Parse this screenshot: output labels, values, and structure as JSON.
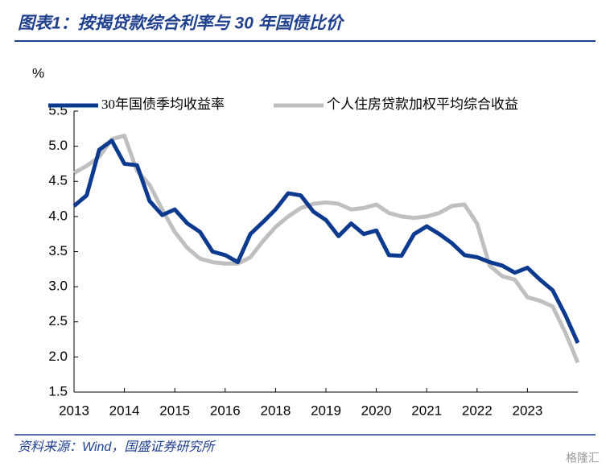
{
  "chart_data": {
    "type": "line",
    "title": "图表1：按揭贷款综合利率与 30 年国债比价",
    "source": "资料来源：Wind，国盛证券研究所",
    "watermark": "格隆汇",
    "y_label": "%",
    "x": [
      0,
      1,
      2,
      3,
      4,
      5,
      6,
      7,
      8,
      9,
      10,
      11,
      12,
      13,
      14,
      15,
      16,
      17,
      18,
      19,
      20,
      21,
      22,
      23,
      24,
      25,
      26,
      27,
      28,
      29,
      30,
      31,
      32,
      33,
      34,
      35,
      36,
      37,
      38,
      39,
      40
    ],
    "xlim": [
      0,
      40
    ],
    "xticks": [
      {
        "value": 0,
        "label": "2013"
      },
      {
        "value": 4,
        "label": "2014"
      },
      {
        "value": 8,
        "label": "2015"
      },
      {
        "value": 12,
        "label": "2016"
      },
      {
        "value": 16,
        "label": "2018"
      },
      {
        "value": 20,
        "label": "2019"
      },
      {
        "value": 24,
        "label": "2020"
      },
      {
        "value": 28,
        "label": "2021"
      },
      {
        "value": 32,
        "label": "2022"
      },
      {
        "value": 36,
        "label": "2023"
      }
    ],
    "ylim": [
      1.5,
      5.5
    ],
    "yticks": [
      {
        "value": 1.5,
        "label": "1.5"
      },
      {
        "value": 2,
        "label": "2.0"
      },
      {
        "value": 2.5,
        "label": "2.5"
      },
      {
        "value": 3,
        "label": "3.0"
      },
      {
        "value": 3.5,
        "label": "3.5"
      },
      {
        "value": 4,
        "label": "4.0"
      },
      {
        "value": 4.5,
        "label": "4.5"
      },
      {
        "value": 5,
        "label": "5.0"
      },
      {
        "value": 5.5,
        "label": "5.5"
      }
    ],
    "series": [
      {
        "name": "30年国债季均收益率",
        "color": "#0b3a8f",
        "values": [
          4.15,
          4.3,
          4.95,
          5.08,
          4.75,
          4.73,
          4.22,
          4.02,
          4.1,
          3.9,
          3.78,
          3.5,
          3.45,
          3.35,
          3.75,
          3.92,
          4.1,
          4.33,
          4.3,
          4.07,
          3.95,
          3.72,
          3.9,
          3.75,
          3.8,
          3.45,
          3.44,
          3.75,
          3.86,
          3.75,
          3.62,
          3.45,
          3.42,
          3.35,
          3.3,
          3.2,
          3.27,
          3.1,
          2.95,
          2.6,
          2.2
        ]
      },
      {
        "name": "个人住房贷款加权平均综合收益",
        "color": "#bfbfbf",
        "values": [
          4.62,
          4.72,
          4.85,
          5.1,
          5.15,
          4.65,
          4.45,
          4.1,
          3.78,
          3.55,
          3.4,
          3.35,
          3.33,
          3.33,
          3.42,
          3.65,
          3.85,
          4.0,
          4.12,
          4.18,
          4.2,
          4.18,
          4.1,
          4.12,
          4.17,
          4.05,
          4.0,
          3.98,
          4.0,
          4.05,
          4.15,
          4.17,
          3.9,
          3.3,
          3.15,
          3.1,
          2.85,
          2.8,
          2.72,
          2.35,
          1.92
        ]
      }
    ]
  }
}
